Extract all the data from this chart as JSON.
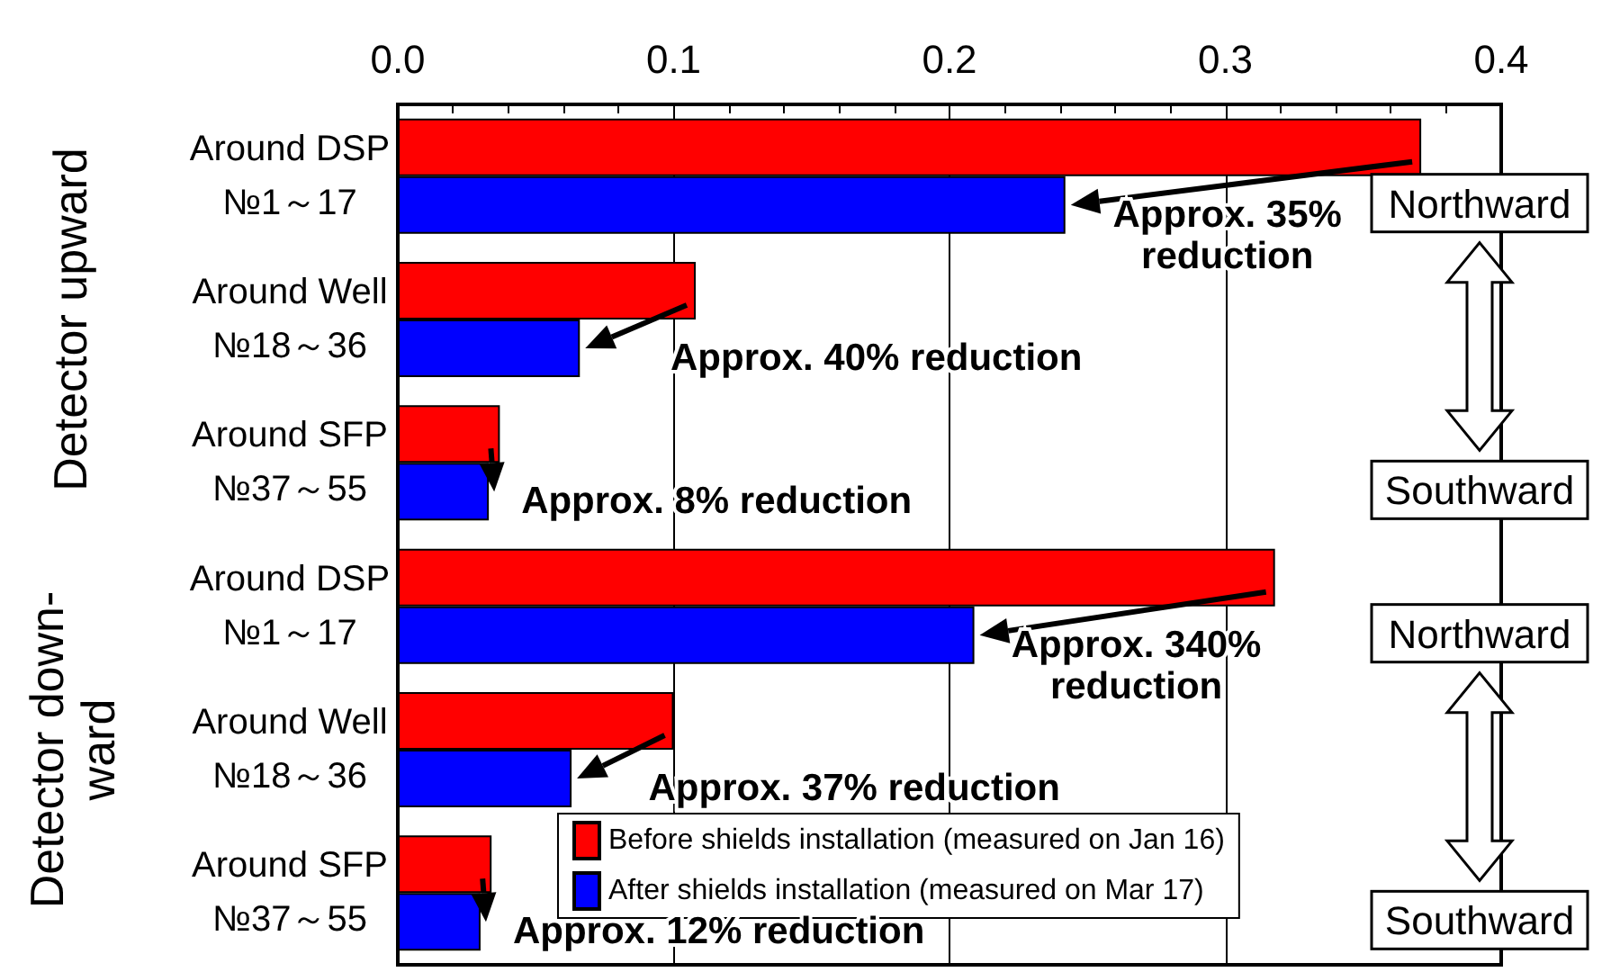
{
  "chart_data": {
    "type": "bar",
    "orientation": "horizontal",
    "categories": [
      "Around DSP\n№1～17",
      "Around Well\n№18～36",
      "Around SFP\n№37～55",
      "Around DSP\n№1～17",
      "Around Well\n№18～36",
      "Around SFP\n№37～55"
    ],
    "series": [
      {
        "name": "Before shields installation (measured on Jan 16)",
        "color": "#ff0000",
        "values": [
          0.371,
          0.108,
          0.037,
          0.318,
          0.1,
          0.034
        ]
      },
      {
        "name": "After shields installation (measured on Mar 17)",
        "color": "#0000ff",
        "values": [
          0.242,
          0.066,
          0.033,
          0.209,
          0.063,
          0.03
        ]
      }
    ],
    "xlim": [
      0,
      0.4
    ],
    "xticks": [
      {
        "value": 0,
        "label": "0.0"
      },
      {
        "value": 0.1,
        "label": "0.1"
      },
      {
        "value": 0.2,
        "label": "0.2"
      },
      {
        "value": 0.3,
        "label": "0.3"
      },
      {
        "value": 0.4,
        "label": "0.4"
      }
    ],
    "grid": "x",
    "legend": "bottom",
    "annotations": [
      "Approx. 35%\nreduction",
      "Approx. 40% reduction",
      "Approx. 8% reduction",
      "Approx. 340%\nreduction",
      "Approx. 37% reduction",
      "Approx. 12% reduction",
      "Northward",
      "Southward",
      "Northward",
      "Southward",
      "Detector upward",
      "Detector down-\nward"
    ]
  }
}
